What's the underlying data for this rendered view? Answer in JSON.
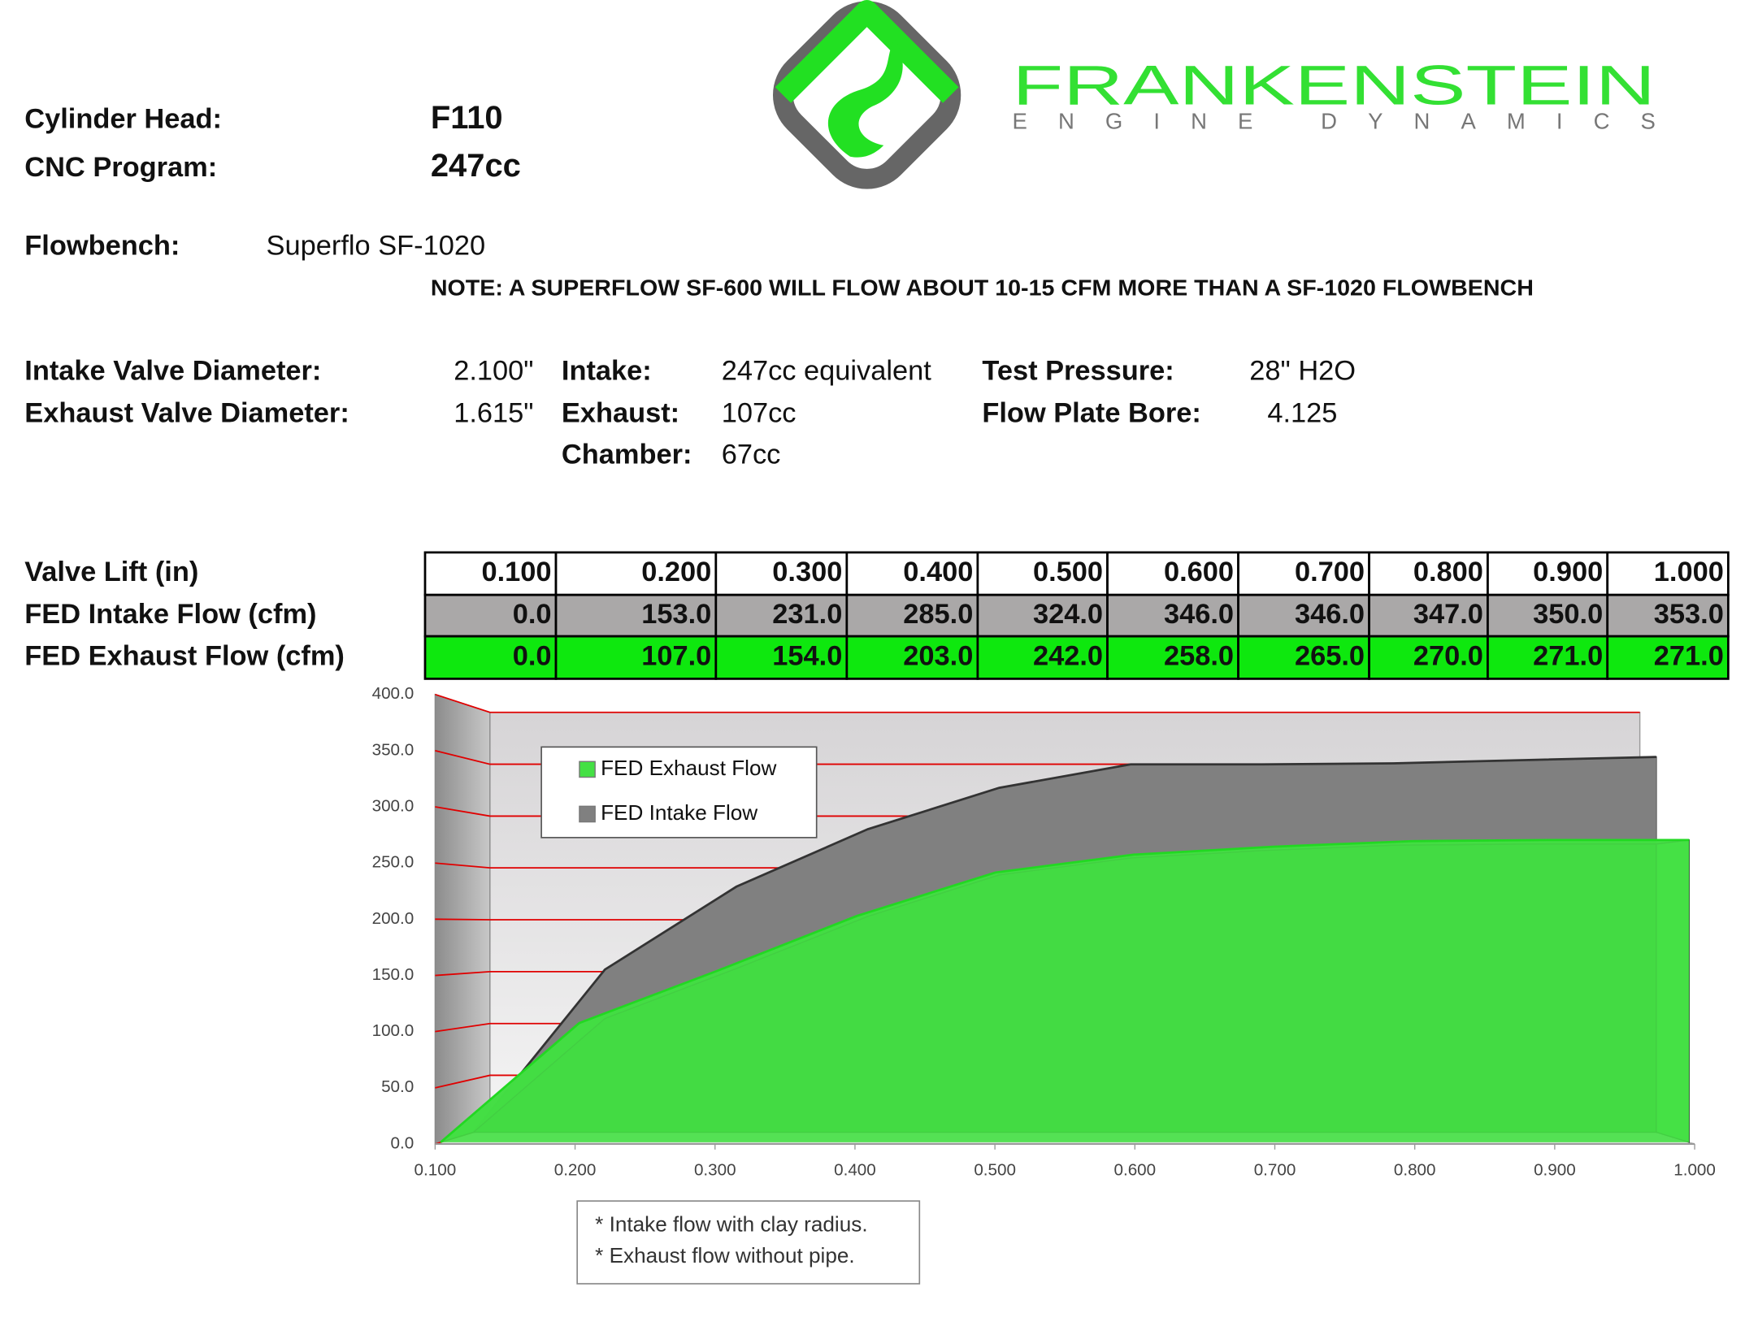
{
  "logo": {
    "name": "FRANKENSTEIN",
    "tagline": "ENGINE DYNAMICS"
  },
  "header": {
    "cylinder_head_label": "Cylinder Head:",
    "cylinder_head": "F110",
    "cnc_program_label": "CNC Program:",
    "cnc_program": "247cc",
    "flowbench_label": "Flowbench:",
    "flowbench": "Superflo SF-1020",
    "note": "NOTE: A SUPERFLOW SF-600 WILL FLOW ABOUT 10-15 CFM MORE THAN A SF-1020 FLOWBENCH"
  },
  "specs": {
    "valves": [
      {
        "label": "Intake Valve Diameter:",
        "value": "2.100\""
      },
      {
        "label": "Exhaust Valve Diameter:",
        "value": "1.615\""
      }
    ],
    "volumes": [
      {
        "label": "Intake:",
        "value": "247cc equivalent"
      },
      {
        "label": "Exhaust:",
        "value": "107cc"
      },
      {
        "label": "Chamber:",
        "value": "67cc"
      }
    ],
    "bench": [
      {
        "label": "Test Pressure:",
        "value": "28\" H2O"
      },
      {
        "label": "Flow Plate Bore:",
        "value": "4.125"
      }
    ]
  },
  "table": {
    "rows": [
      [
        "Valve Lift (in)",
        "0.100",
        "0.200",
        "0.300",
        "0.400",
        "0.500",
        "0.600",
        "0.700",
        "0.800",
        "0.900",
        "1.000"
      ],
      [
        "FED Intake Flow (cfm)",
        "0.0",
        "153.0",
        "231.0",
        "285.0",
        "324.0",
        "346.0",
        "346.0",
        "347.0",
        "350.0",
        "353.0"
      ],
      [
        "FED Exhaust Flow (cfm)",
        "0.0",
        "107.0",
        "154.0",
        "203.0",
        "242.0",
        "258.0",
        "265.0",
        "270.0",
        "271.0",
        "271.0"
      ]
    ]
  },
  "chart_data": {
    "type": "area3d",
    "x": [
      0.1,
      0.2,
      0.3,
      0.4,
      0.5,
      0.6,
      0.7,
      0.8,
      0.9,
      1.0
    ],
    "series": [
      {
        "name": "FED Exhaust Flow",
        "color": "#44e044",
        "values": [
          0,
          107,
          154,
          203,
          242,
          258,
          265,
          270,
          271,
          271
        ]
      },
      {
        "name": "FED Intake Flow",
        "color": "#808080",
        "values": [
          0,
          153,
          231,
          285,
          324,
          346,
          346,
          347,
          350,
          353
        ]
      }
    ],
    "xlim": [
      0.1,
      1.0
    ],
    "xticks": [
      {
        "value": 0.1,
        "label": "0.100"
      },
      {
        "value": 0.2,
        "label": "0.200"
      },
      {
        "value": 0.3,
        "label": "0.300"
      },
      {
        "value": 0.4,
        "label": "0.400"
      },
      {
        "value": 0.5,
        "label": "0.500"
      },
      {
        "value": 0.6,
        "label": "0.600"
      },
      {
        "value": 0.7,
        "label": "0.700"
      },
      {
        "value": 0.8,
        "label": "0.800"
      },
      {
        "value": 0.9,
        "label": "0.900"
      },
      {
        "value": 1.0,
        "label": "1.000"
      }
    ],
    "ylim": [
      0,
      400
    ],
    "yticks": [
      {
        "value": 0,
        "label": "0.0"
      },
      {
        "value": 50,
        "label": "50.0"
      },
      {
        "value": 100,
        "label": "100.0"
      },
      {
        "value": 150,
        "label": "150.0"
      },
      {
        "value": 200,
        "label": "200.0"
      },
      {
        "value": 250,
        "label": "250.0"
      },
      {
        "value": 300,
        "label": "300.0"
      },
      {
        "value": 350,
        "label": "350.0"
      },
      {
        "value": 400,
        "label": "400.0"
      }
    ],
    "grid": true,
    "grid_color": "#e00000",
    "legend": "upper left",
    "annotations": [
      "* Intake flow with clay radius.",
      "* Exhaust flow without pipe."
    ]
  }
}
